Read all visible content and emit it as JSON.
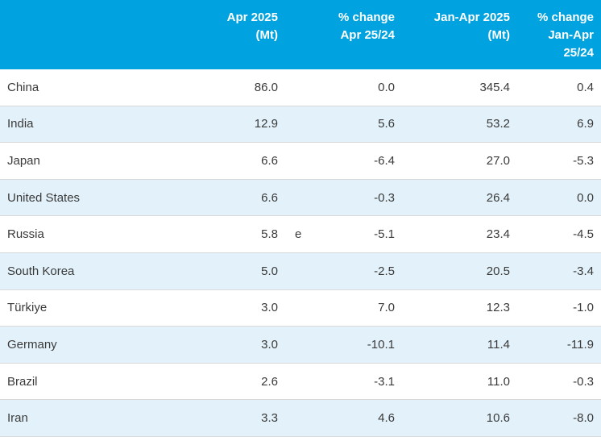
{
  "colors": {
    "header_bg": "#00a3df",
    "header_text": "#ffffff",
    "row_alt_bg": "#e3f2fa",
    "body_text": "#3a3a3a",
    "row_border": "#d9d9d9"
  },
  "table": {
    "header": {
      "country": "",
      "apr": "Apr 2025\n(Mt)",
      "apr_change": "% change\nApr 25/24",
      "jan_apr": "Jan-Apr 2025\n(Mt)",
      "jan_apr_change": "% change\nJan-Apr\n25/24"
    },
    "rows": [
      {
        "country": "China",
        "apr": "86.0",
        "note": "",
        "apr_change": "0.0",
        "jan_apr": "345.4",
        "jan_apr_change": "0.4"
      },
      {
        "country": "India",
        "apr": "12.9",
        "note": "",
        "apr_change": "5.6",
        "jan_apr": "53.2",
        "jan_apr_change": "6.9"
      },
      {
        "country": "Japan",
        "apr": "6.6",
        "note": "",
        "apr_change": "-6.4",
        "jan_apr": "27.0",
        "jan_apr_change": "-5.3"
      },
      {
        "country": "United States",
        "apr": "6.6",
        "note": "",
        "apr_change": "-0.3",
        "jan_apr": "26.4",
        "jan_apr_change": "0.0"
      },
      {
        "country": "Russia",
        "apr": "5.8",
        "note": "e",
        "apr_change": "-5.1",
        "jan_apr": "23.4",
        "jan_apr_change": "-4.5"
      },
      {
        "country": "South Korea",
        "apr": "5.0",
        "note": "",
        "apr_change": "-2.5",
        "jan_apr": "20.5",
        "jan_apr_change": "-3.4"
      },
      {
        "country": "Türkiye",
        "apr": "3.0",
        "note": "",
        "apr_change": "7.0",
        "jan_apr": "12.3",
        "jan_apr_change": "-1.0"
      },
      {
        "country": "Germany",
        "apr": "3.0",
        "note": "",
        "apr_change": "-10.1",
        "jan_apr": "11.4",
        "jan_apr_change": "-11.9"
      },
      {
        "country": "Brazil",
        "apr": "2.6",
        "note": "",
        "apr_change": "-3.1",
        "jan_apr": "11.0",
        "jan_apr_change": "-0.3"
      },
      {
        "country": "Iran",
        "apr": "3.3",
        "note": "",
        "apr_change": "4.6",
        "jan_apr": "10.6",
        "jan_apr_change": "-8.0"
      }
    ]
  },
  "chart_data": {
    "type": "table",
    "title": "",
    "columns": [
      "Country",
      "Apr 2025 (Mt)",
      "% change Apr 25/24",
      "Jan-Apr 2025 (Mt)",
      "% change Jan-Apr 25/24"
    ],
    "rows": [
      [
        "China",
        86.0,
        0.0,
        345.4,
        0.4
      ],
      [
        "India",
        12.9,
        5.6,
        53.2,
        6.9
      ],
      [
        "Japan",
        6.6,
        -6.4,
        27.0,
        -5.3
      ],
      [
        "United States",
        6.6,
        -0.3,
        26.4,
        0.0
      ],
      [
        "Russia",
        5.8,
        -5.1,
        23.4,
        -4.5
      ],
      [
        "South Korea",
        5.0,
        -2.5,
        20.5,
        -3.4
      ],
      [
        "Türkiye",
        3.0,
        7.0,
        12.3,
        -1.0
      ],
      [
        "Germany",
        3.0,
        -10.1,
        11.4,
        -11.9
      ],
      [
        "Brazil",
        2.6,
        -3.1,
        11.0,
        -0.3
      ],
      [
        "Iran",
        3.3,
        4.6,
        10.6,
        -8.0
      ]
    ],
    "footnote_markers": [
      {
        "row": "Russia",
        "column": "Apr 2025 (Mt)",
        "marker": "e"
      }
    ],
    "layout_hints": {
      "zebra_striping": true,
      "header_background": "#00a3df",
      "numeric_columns_right_aligned": true
    }
  }
}
